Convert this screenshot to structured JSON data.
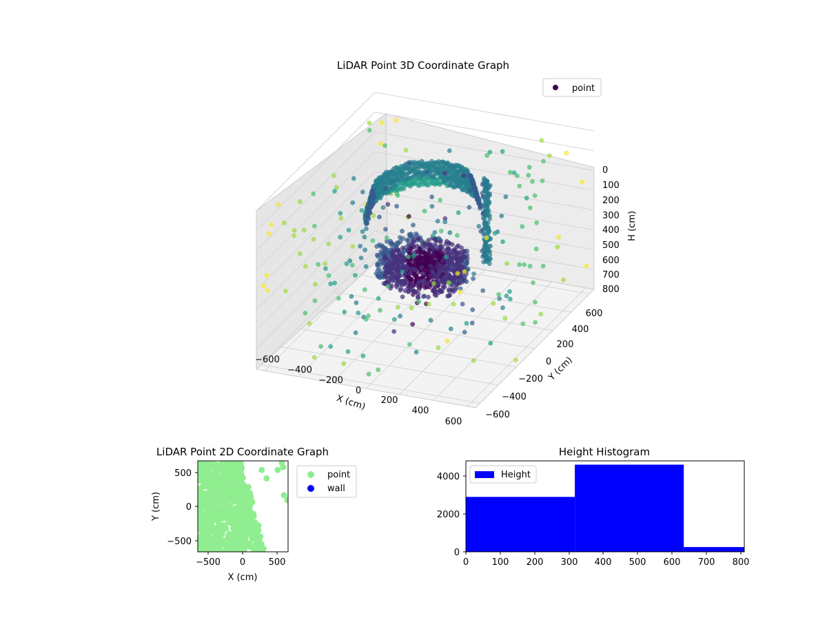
{
  "charts": {
    "scatter3d": {
      "title": "LiDAR Point 3D Coordinate Graph",
      "legend": [
        "point"
      ],
      "xlabel": "X (cm)",
      "ylabel": "Y (cm)",
      "zlabel": "H (cm)",
      "xticks": [
        "−600",
        "−400",
        "−200",
        "0",
        "200",
        "400",
        "600"
      ],
      "yticks": [
        "−600",
        "−400",
        "−200",
        "0",
        "200",
        "400",
        "600"
      ],
      "zticks": [
        "0",
        "100",
        "200",
        "300",
        "400",
        "500",
        "600",
        "700",
        "800"
      ]
    },
    "scatter2d": {
      "title": "LiDAR Point 2D Coordinate Graph",
      "legend": [
        "point",
        "wall"
      ],
      "xlabel": "X (cm)",
      "ylabel": "Y (cm)",
      "xticks": [
        "−500",
        "0",
        "500"
      ],
      "yticks": [
        "500",
        "0",
        "−500"
      ]
    },
    "histogram": {
      "title": "Height Histogram",
      "legend": [
        "Height"
      ],
      "xticks": [
        "0",
        "100",
        "200",
        "300",
        "400",
        "500",
        "600",
        "700",
        "800"
      ],
      "yticks": [
        "0",
        "2000",
        "4000"
      ]
    }
  },
  "chart_data": [
    {
      "type": "scatter",
      "title": "LiDAR Point 3D Coordinate Graph",
      "projection": "3d",
      "xlabel": "X (cm)",
      "ylabel": "Y (cm)",
      "zlabel": "H (cm)",
      "xlim": [
        -650,
        650
      ],
      "ylim": [
        -650,
        650
      ],
      "zlim": [
        800,
        0
      ],
      "zaxis_inverted": true,
      "colormap": "viridis",
      "series": [
        {
          "name": "point",
          "color": "#440154"
        }
      ],
      "legend_position": "top-right",
      "grid": true
    },
    {
      "type": "scatter",
      "title": "LiDAR Point 2D Coordinate Graph",
      "xlabel": "X (cm)",
      "ylabel": "Y (cm)",
      "xlim": [
        -650,
        650
      ],
      "ylim": [
        -650,
        650
      ],
      "series": [
        {
          "name": "point",
          "color": "#90ee90"
        },
        {
          "name": "wall",
          "color": "#0000ff"
        }
      ],
      "legend_position": "outside-right"
    },
    {
      "type": "bar",
      "title": "Height Histogram",
      "series": [
        {
          "name": "Height",
          "color": "#0000ff"
        }
      ],
      "bins": [
        {
          "start": 0,
          "end": 317,
          "value": 2900
        },
        {
          "start": 317,
          "end": 634,
          "value": 4600
        },
        {
          "start": 634,
          "end": 810,
          "value": 250
        }
      ],
      "xlim": [
        0,
        810
      ],
      "ylim": [
        0,
        4800
      ],
      "legend_position": "top-left"
    }
  ]
}
